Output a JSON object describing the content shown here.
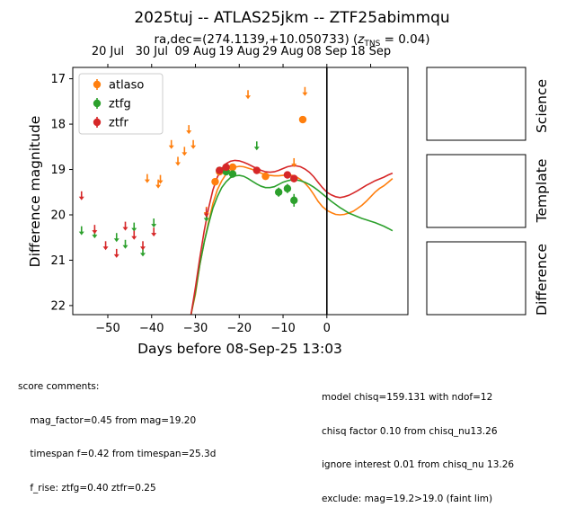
{
  "chart_data": {
    "type": "scatter",
    "title": "2025tuj -- ATLAS25jkm -- ZTF25abimmqu",
    "subtitle_prefix": "ra,dec=(274.1139,+10.050733) (",
    "subtitle_z_sym": "z",
    "subtitle_z_sub": "TNS",
    "subtitle_suffix": " = 0.04)",
    "xlabel": "Days before 08-Sep-25 13:03",
    "ylabel": "Difference magnitude",
    "xlim": [
      -58,
      18.5
    ],
    "ylim": [
      22.2,
      16.75
    ],
    "x_ticks": [
      -50,
      -40,
      -30,
      -20,
      -10,
      0
    ],
    "x_tick_labels": [
      "−50",
      "−40",
      "−30",
      "−20",
      "−10",
      "0"
    ],
    "y_ticks": [
      17,
      18,
      19,
      20,
      21,
      22
    ],
    "y_tick_labels": [
      "17",
      "18",
      "19",
      "20",
      "21",
      "22"
    ],
    "top_axis_ticks": [
      {
        "x": -50,
        "label": "20 Jul"
      },
      {
        "x": -40,
        "label": "30 Jul"
      },
      {
        "x": -30,
        "label": "09 Aug"
      },
      {
        "x": -20,
        "label": "19 Aug"
      },
      {
        "x": -10,
        "label": "29 Aug"
      },
      {
        "x": 0,
        "label": "08 Sep"
      },
      {
        "x": 10,
        "label": "18 Sep"
      }
    ],
    "vline_x": 0,
    "legend": {
      "placement": "upper-left",
      "entries": [
        "atlaso",
        "ztfg",
        "ztfr"
      ]
    },
    "series": [
      {
        "name": "atlaso",
        "color": "#ff7f0e",
        "detections": [
          {
            "x": -25.5,
            "y": 19.27,
            "err": 0.08
          },
          {
            "x": -24.5,
            "y": 19.05,
            "err": 0.07
          },
          {
            "x": -21.5,
            "y": 18.95,
            "err": 0.06
          },
          {
            "x": -14,
            "y": 19.15,
            "err": 0.08
          },
          {
            "x": -5.5,
            "y": 17.9,
            "err": 0.06
          }
        ],
        "upper_limits": [
          {
            "x": -41,
            "y": 19.2
          },
          {
            "x": -38.5,
            "y": 19.32
          },
          {
            "x": -38,
            "y": 19.22
          },
          {
            "x": -35.5,
            "y": 18.45
          },
          {
            "x": -34,
            "y": 18.82
          },
          {
            "x": -32.5,
            "y": 18.6
          },
          {
            "x": -31.5,
            "y": 18.12
          },
          {
            "x": -30.5,
            "y": 18.45
          },
          {
            "x": -27.5,
            "y": 19.92
          },
          {
            "x": -18,
            "y": 17.35
          },
          {
            "x": -7.5,
            "y": 18.85
          },
          {
            "x": -5,
            "y": 17.28
          }
        ],
        "model": {
          "x": [
            -31,
            -30,
            -29,
            -28,
            -27,
            -26,
            -25,
            -24,
            -23,
            -22,
            -21,
            -20,
            -19,
            -18,
            -17,
            -16,
            -15,
            -14,
            -13,
            -12,
            -11,
            -10,
            -9,
            -8,
            -7,
            -6,
            -5,
            -4,
            -3,
            -2,
            -1,
            0,
            1,
            2,
            3,
            4,
            5,
            6,
            7,
            8,
            9,
            10,
            11,
            12,
            13,
            14,
            15
          ],
          "y": [
            22.2,
            21.75,
            21.1,
            20.6,
            20.15,
            19.75,
            19.45,
            19.25,
            19.1,
            19.0,
            18.95,
            18.93,
            18.94,
            18.97,
            19.0,
            19.04,
            19.08,
            19.11,
            19.13,
            19.14,
            19.14,
            19.13,
            19.12,
            19.13,
            19.16,
            19.22,
            19.3,
            19.41,
            19.55,
            19.7,
            19.82,
            19.9,
            19.95,
            19.99,
            20.0,
            19.99,
            19.96,
            19.92,
            19.86,
            19.79,
            19.7,
            19.6,
            19.5,
            19.42,
            19.36,
            19.28,
            19.2
          ]
        }
      },
      {
        "name": "ztfg",
        "color": "#2ca02c",
        "detections": [
          {
            "x": -24.5,
            "y": 19.02,
            "err": 0.07
          },
          {
            "x": -23,
            "y": 19.05,
            "err": 0.07
          },
          {
            "x": -21.5,
            "y": 19.1,
            "err": 0.08
          },
          {
            "x": -11,
            "y": 19.5,
            "err": 0.1
          },
          {
            "x": -9,
            "y": 19.42,
            "err": 0.1
          },
          {
            "x": -7.5,
            "y": 19.68,
            "err": 0.14
          }
        ],
        "upper_limits": [
          {
            "x": -56,
            "y": 20.35
          },
          {
            "x": -53,
            "y": 20.42
          },
          {
            "x": -48,
            "y": 20.5
          },
          {
            "x": -46,
            "y": 20.65
          },
          {
            "x": -44,
            "y": 20.27
          },
          {
            "x": -42,
            "y": 20.82
          },
          {
            "x": -39.5,
            "y": 20.18
          },
          {
            "x": -27.5,
            "y": 20.05
          },
          {
            "x": -16,
            "y": 18.48
          }
        ],
        "model": {
          "x": [
            -31,
            -30,
            -29,
            -28,
            -27,
            -26,
            -25,
            -24,
            -23,
            -22,
            -21,
            -20,
            -19,
            -18,
            -17,
            -16,
            -15,
            -14,
            -13,
            -12,
            -11,
            -10,
            -9,
            -8,
            -7,
            -6,
            -5,
            -4,
            -3,
            -2,
            -1,
            0,
            1,
            2,
            3,
            4,
            5,
            6,
            7,
            8,
            9,
            10,
            11,
            12,
            13,
            14,
            15
          ],
          "y": [
            22.2,
            21.7,
            21.1,
            20.6,
            20.2,
            19.85,
            19.6,
            19.4,
            19.27,
            19.18,
            19.14,
            19.13,
            19.15,
            19.2,
            19.26,
            19.32,
            19.37,
            19.4,
            19.4,
            19.38,
            19.33,
            19.28,
            19.25,
            19.23,
            19.23,
            19.25,
            19.28,
            19.33,
            19.39,
            19.46,
            19.54,
            19.62,
            19.7,
            19.77,
            19.84,
            19.9,
            19.96,
            20.0,
            20.04,
            20.08,
            20.11,
            20.14,
            20.17,
            20.21,
            20.25,
            20.3,
            20.35
          ]
        }
      },
      {
        "name": "ztfr",
        "color": "#d62728",
        "detections": [
          {
            "x": -24.5,
            "y": 19.02,
            "err": 0.07
          },
          {
            "x": -23,
            "y": 18.95,
            "err": 0.06
          },
          {
            "x": -16,
            "y": 19.02,
            "err": 0.07
          },
          {
            "x": -9,
            "y": 19.12,
            "err": 0.08
          },
          {
            "x": -7.5,
            "y": 19.2,
            "err": 0.08
          }
        ],
        "upper_limits": [
          {
            "x": -56,
            "y": 19.58
          },
          {
            "x": -53,
            "y": 20.32
          },
          {
            "x": -50.5,
            "y": 20.68
          },
          {
            "x": -48,
            "y": 20.85
          },
          {
            "x": -46,
            "y": 20.25
          },
          {
            "x": -44,
            "y": 20.45
          },
          {
            "x": -42,
            "y": 20.68
          },
          {
            "x": -39.5,
            "y": 20.38
          },
          {
            "x": -27.5,
            "y": 19.95
          }
        ],
        "model": {
          "x": [
            -31,
            -30,
            -29,
            -28,
            -27,
            -26,
            -25,
            -24,
            -23,
            -22,
            -21,
            -20,
            -19,
            -18,
            -17,
            -16,
            -15,
            -14,
            -13,
            -12,
            -11,
            -10,
            -9,
            -8,
            -7,
            -6,
            -5,
            -4,
            -3,
            -2,
            -1,
            0,
            1,
            2,
            3,
            4,
            5,
            6,
            7,
            8,
            9,
            10,
            11,
            12,
            13,
            14,
            15
          ],
          "y": [
            22.2,
            21.6,
            20.95,
            20.35,
            19.85,
            19.45,
            19.17,
            18.98,
            18.87,
            18.82,
            18.8,
            18.81,
            18.84,
            18.88,
            18.93,
            18.98,
            19.02,
            19.05,
            19.06,
            19.05,
            19.02,
            18.98,
            18.94,
            18.92,
            18.92,
            18.94,
            18.99,
            19.06,
            19.16,
            19.28,
            19.4,
            19.5,
            19.56,
            19.6,
            19.62,
            19.6,
            19.57,
            19.52,
            19.47,
            19.41,
            19.35,
            19.3,
            19.25,
            19.21,
            19.17,
            19.12,
            19.08
          ]
        }
      }
    ]
  },
  "side_panels": [
    "Science",
    "Template",
    "Difference"
  ],
  "comments": {
    "left": [
      "score comments:",
      "    mag_factor=0.45 from mag=19.20",
      "    timespan f=0.42 from timespan=25.3d",
      "    f_rise: ztfg=0.40 ztfr=0.25"
    ],
    "right": [
      "model chisq=159.131 with ndof=12",
      "chisq factor 0.10 from chisq_nu13.26",
      "ignore interest 0.01 from chisq_nu 13.26",
      "exclude: mag=19.2>19.0 (faint lim)"
    ]
  }
}
